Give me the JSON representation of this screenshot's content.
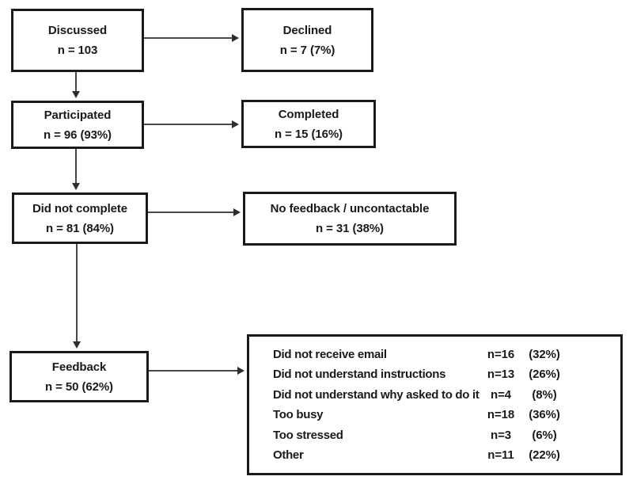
{
  "nodes": {
    "discussed": {
      "label": "Discussed",
      "value": "n = 103"
    },
    "declined": {
      "label": "Declined",
      "value": "n = 7 (7%)"
    },
    "participated": {
      "label": "Participated",
      "value": "n = 96 (93%)"
    },
    "completed": {
      "label": "Completed",
      "value": "n = 15 (16%)"
    },
    "did_not_complete": {
      "label": "Did not complete",
      "value": "n = 81 (84%)"
    },
    "no_feedback": {
      "label": "No feedback / uncontactable",
      "value": "n = 31 (38%)"
    },
    "feedback": {
      "label": "Feedback",
      "value": "n = 50 (62%)"
    }
  },
  "reasons": {
    "rows": [
      {
        "label": "Did not receive email",
        "n": "n=16",
        "pct": "(32%)"
      },
      {
        "label": "Did not understand instructions",
        "n": "n=13",
        "pct": "(26%)"
      },
      {
        "label": "Did not understand why asked to do it",
        "n": "n=4",
        "pct": "(8%)"
      },
      {
        "label": "Too busy",
        "n": "n=18",
        "pct": "(36%)"
      },
      {
        "label": "Too stressed",
        "n": "n=3",
        "pct": "(6%)"
      },
      {
        "label": "Other",
        "n": "n=11",
        "pct": "(22%)"
      }
    ]
  },
  "colors": {
    "background": "#ffffff",
    "border": "#1a1a1a",
    "arrow": "#474747",
    "text": "#1a1a1a"
  }
}
